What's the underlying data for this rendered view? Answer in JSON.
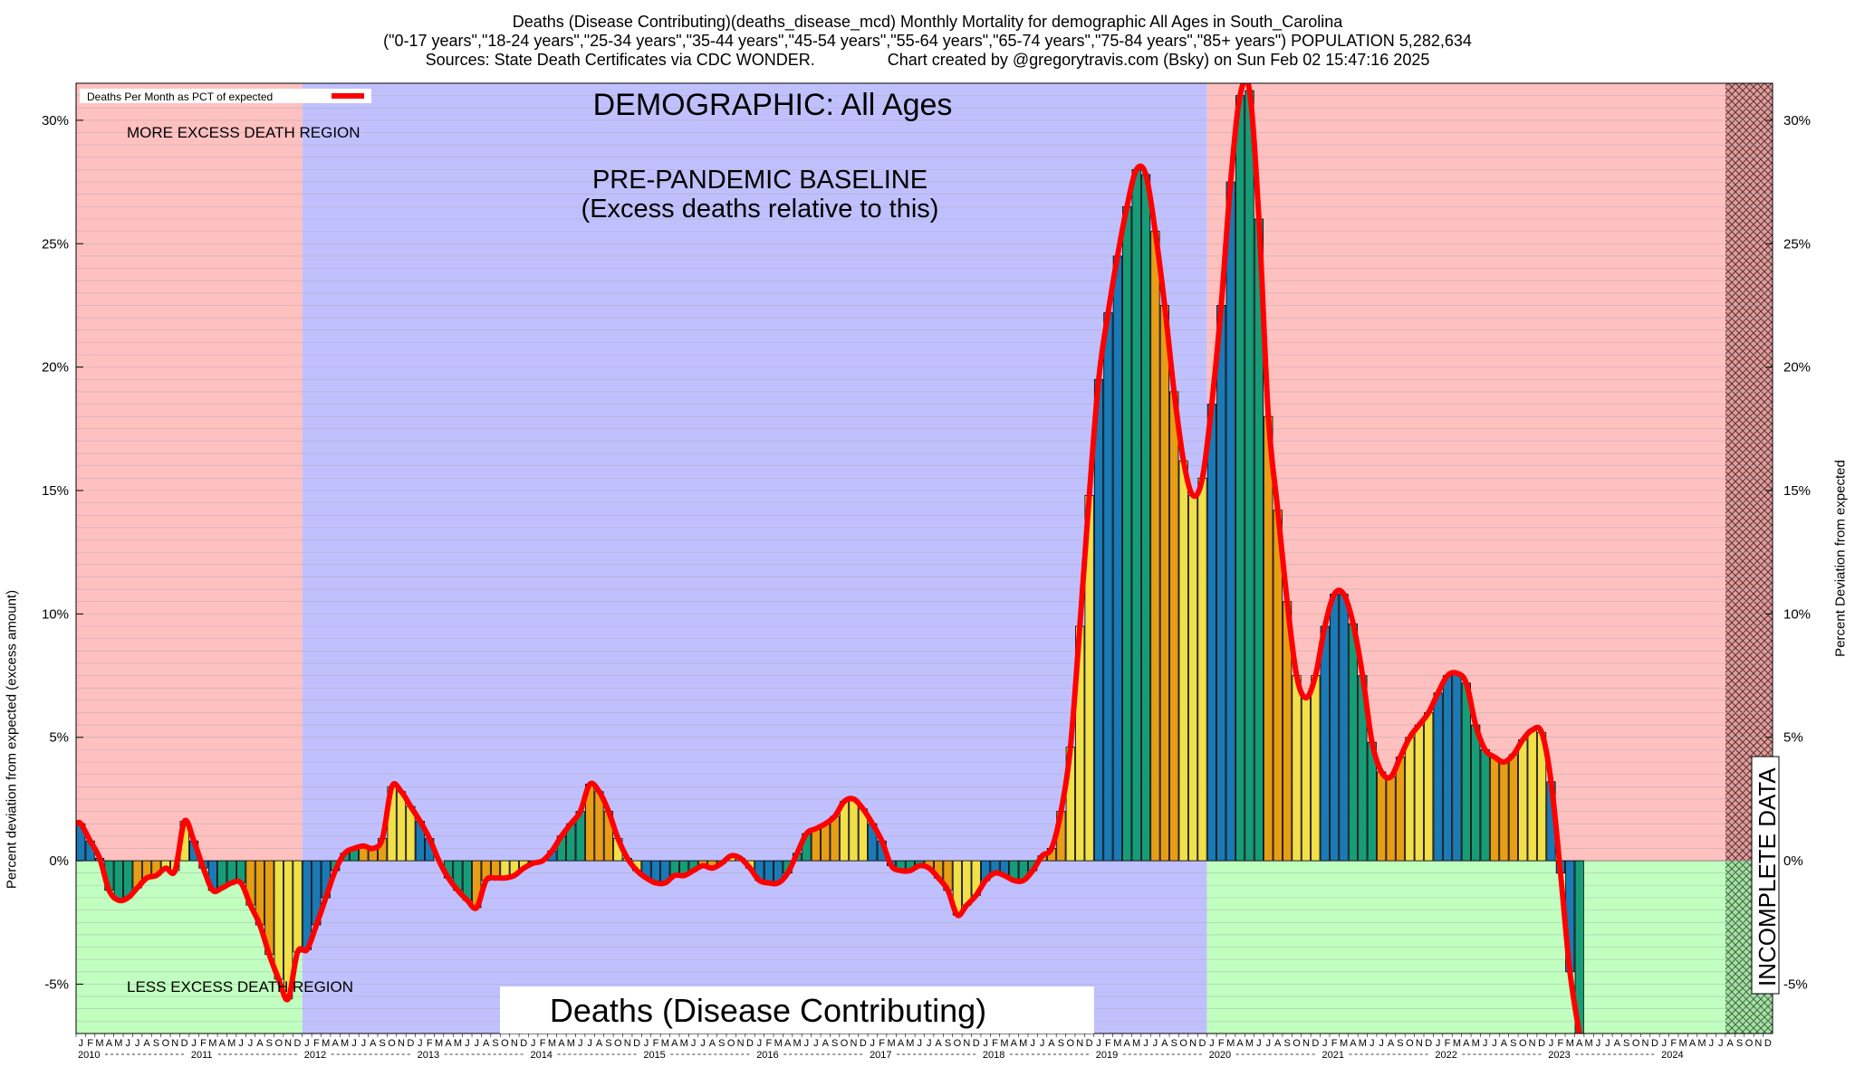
{
  "header": {
    "line1": "Deaths (Disease Contributing)(deaths_disease_mcd) Monthly Mortality for demographic All Ages in South_Carolina",
    "line2": "(\"0-17 years\",\"18-24 years\",\"25-34 years\",\"35-44 years\",\"45-54 years\",\"55-64 years\",\"65-74 years\",\"75-84 years\",\"85+ years\") POPULATION 5,282,634",
    "line3": "Sources: State Death Certificates via CDC WONDER.                Chart created by @gregorytravis.com (Bsky) on Sun Feb 02 15:47:16 2025"
  },
  "labels": {
    "legend": "Deaths Per Month as PCT of expected",
    "demographic": "DEMOGRAPHIC: All Ages",
    "baseline_line1": "PRE-PANDEMIC BASELINE",
    "baseline_line2": "(Excess deaths relative to this)",
    "more_region": "MORE EXCESS DEATH REGION",
    "less_region": "LESS EXCESS DEATH REGION",
    "metric_box": "Deaths (Disease Contributing)",
    "incomplete": "INCOMPLETE DATA",
    "ylabel_left": "Percent deviation from expected (excess amount)",
    "ylabel_right": "Percent Deviation from expected",
    "month_letters": [
      "J",
      "F",
      "M",
      "A",
      "M",
      "J",
      "J",
      "A",
      "S",
      "O",
      "N",
      "D"
    ]
  },
  "colors": {
    "excess_region": "#ffc0c0",
    "less_region": "#c0ffc0",
    "baseline_region": "#c0c0ff",
    "incomplete_hatch": "#b06060",
    "line": "#ff0000",
    "bar_palette": [
      "#1a7ab5",
      "#179c78",
      "#e59e16",
      "#f1e04a"
    ]
  },
  "chart_data": {
    "type": "bar",
    "title": "Deaths (Disease Contributing)(deaths_disease_mcd) Monthly Mortality for demographic All Ages in South_Carolina",
    "xlabel": "",
    "ylabel": "Percent deviation from expected (excess amount)",
    "y2label": "Percent Deviation from expected",
    "ylim": [
      -7,
      31.5
    ],
    "yticks": [
      -5,
      0,
      5,
      10,
      15,
      20,
      25,
      30
    ],
    "ytick_labels": [
      "-5%",
      "0%",
      "5%",
      "10%",
      "15%",
      "20%",
      "25%",
      "30%"
    ],
    "start": "2010-01",
    "years": [
      "2010",
      "2011",
      "2012",
      "2013",
      "2014",
      "2015",
      "2016",
      "2017",
      "2018",
      "2019",
      "2020",
      "2021",
      "2022",
      "2023",
      "2024"
    ],
    "baseline_period": [
      "2012-01",
      "2019-12"
    ],
    "incomplete_from": "2024-08",
    "legend": "Deaths Per Month as PCT of expected",
    "series": [
      {
        "name": "Deaths Per Month as PCT of expected",
        "values": [
          1.5,
          0.8,
          0.1,
          -1.2,
          -1.6,
          -1.5,
          -1.1,
          -0.7,
          -0.6,
          -0.3,
          -0.4,
          1.6,
          0.8,
          -0.3,
          -1.2,
          -1.1,
          -0.9,
          -0.9,
          -1.8,
          -2.6,
          -3.8,
          -4.8,
          -5.6,
          -3.7,
          -3.6,
          -2.6,
          -1.5,
          -0.4,
          0.3,
          0.5,
          0.6,
          0.5,
          0.9,
          3.0,
          2.8,
          2.2,
          1.6,
          0.9,
          0.0,
          -0.7,
          -1.2,
          -1.6,
          -1.9,
          -0.8,
          -0.7,
          -0.7,
          -0.6,
          -0.3,
          -0.1,
          0.0,
          0.4,
          1.0,
          1.5,
          2.0,
          3.1,
          2.8,
          2.0,
          0.9,
          0.1,
          -0.4,
          -0.7,
          -0.9,
          -0.9,
          -0.6,
          -0.6,
          -0.4,
          -0.2,
          -0.3,
          -0.1,
          0.2,
          0.1,
          -0.3,
          -0.8,
          -0.9,
          -0.9,
          -0.5,
          0.3,
          1.1,
          1.3,
          1.5,
          1.8,
          2.4,
          2.5,
          2.1,
          1.5,
          0.8,
          -0.2,
          -0.4,
          -0.4,
          -0.2,
          -0.3,
          -0.7,
          -1.2,
          -2.2,
          -1.8,
          -1.4,
          -0.8,
          -0.5,
          -0.6,
          -0.8,
          -0.8,
          -0.4,
          0.2,
          0.5,
          2.0,
          4.6,
          9.5,
          14.8,
          19.5,
          22.2,
          24.5,
          26.5,
          28.0,
          27.8,
          25.5,
          22.5,
          19.0,
          16.2,
          14.8,
          15.5,
          18.5,
          22.5,
          27.5,
          31.0,
          31.2,
          26.0,
          18.0,
          14.2,
          10.5,
          7.5,
          6.6,
          7.5,
          9.5,
          10.8,
          10.8,
          9.6,
          7.5,
          4.8,
          3.6,
          3.4,
          4.2,
          5.0,
          5.5,
          6.0,
          6.8,
          7.5,
          7.6,
          7.2,
          5.5,
          4.5,
          4.2,
          4.0,
          4.3,
          4.9,
          5.3,
          5.2,
          3.2,
          -0.5,
          -4.5,
          -7.0
        ]
      }
    ]
  }
}
